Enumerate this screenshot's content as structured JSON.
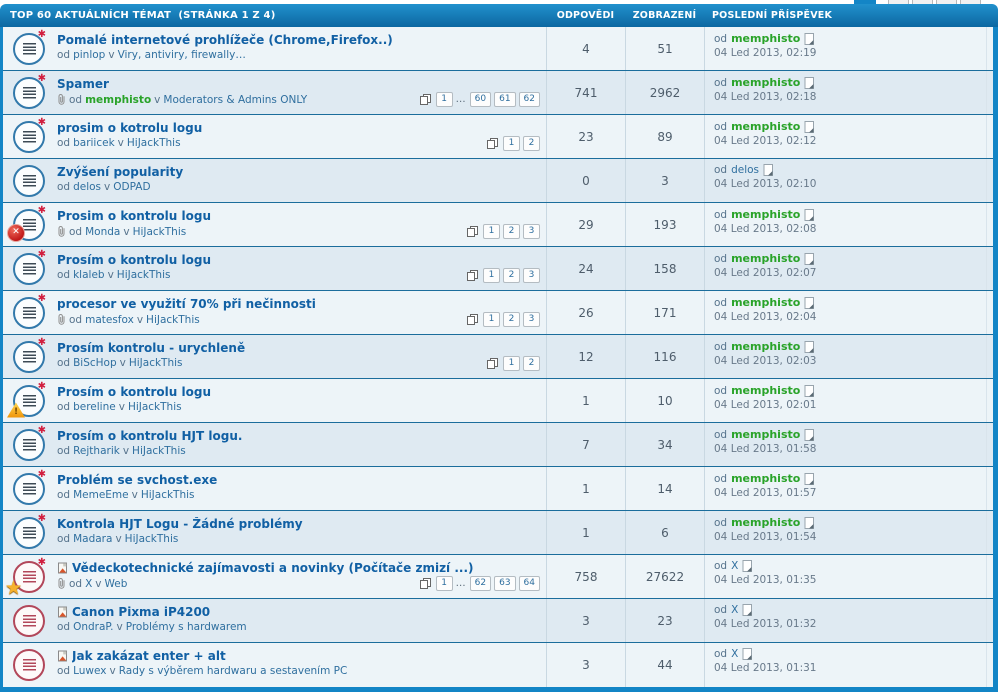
{
  "header": {
    "title": "TOP 60 AKTUÁLNÍCH TÉMAT",
    "page_info": "(STRÁNKA 1 Z 4)",
    "col_replies": "ODPOVĚDI",
    "col_views": "ZOBRAZENÍ",
    "col_lastpost": "POSLEDNÍ PŘÍSPĚVEK"
  },
  "labels": {
    "by": "od",
    "in": "v",
    "ellipsis": "…"
  },
  "icons": {
    "unread_glyph": "✱",
    "lock_glyph": "✕",
    "warn_glyph": "!",
    "star_glyph": "★"
  },
  "colors": {
    "accent_blue": "#1385c6",
    "header_gradient_top": "#2191cd",
    "header_gradient_bottom": "#0c67a1",
    "row_light": "#edf4f8",
    "row_alt": "#dfeaf2",
    "row_separator": "#1b6d9c",
    "title_link": "#1160a4",
    "author_green": "#29a329",
    "unread_red": "#d11f3f",
    "sticky_star_orange": "#f6b12e"
  },
  "topics": [
    {
      "title": "Pomalé internetové prohlížeče (Chrome,Firefox..)",
      "icon": "blue",
      "unread": true,
      "badge": "",
      "title_flag": false,
      "attachment": false,
      "author": "pinlop",
      "author_style": "normal",
      "forum": "Viry, antiviry, firewally…",
      "pages": [],
      "replies": "4",
      "views": "51",
      "last_author": "memphisto",
      "last_author_style": "green",
      "last_date": "04 Led 2013, 02:19"
    },
    {
      "title": "Spamer",
      "icon": "blue",
      "unread": true,
      "badge": "",
      "title_flag": false,
      "attachment": true,
      "author": "memphisto",
      "author_style": "green",
      "forum": "Moderators & Admins ONLY",
      "pages": [
        "1",
        "…",
        "60",
        "61",
        "62"
      ],
      "replies": "741",
      "views": "2962",
      "last_author": "memphisto",
      "last_author_style": "green",
      "last_date": "04 Led 2013, 02:18"
    },
    {
      "title": "prosim o kotrolu logu",
      "icon": "blue",
      "unread": true,
      "badge": "",
      "title_flag": false,
      "attachment": false,
      "author": "bariicek",
      "author_style": "normal",
      "forum": "HiJackThis",
      "pages": [
        "1",
        "2"
      ],
      "replies": "23",
      "views": "89",
      "last_author": "memphisto",
      "last_author_style": "green",
      "last_date": "04 Led 2013, 02:12"
    },
    {
      "title": "Zvýšení popularity",
      "icon": "blue",
      "unread": false,
      "badge": "",
      "title_flag": false,
      "attachment": false,
      "author": "delos",
      "author_style": "normal",
      "forum": "ODPAD",
      "pages": [],
      "replies": "0",
      "views": "3",
      "last_author": "delos",
      "last_author_style": "normal",
      "last_date": "04 Led 2013, 02:10"
    },
    {
      "title": "Prosim o kontrolu logu",
      "icon": "blue",
      "unread": true,
      "badge": "lock",
      "title_flag": false,
      "attachment": true,
      "author": "Monda",
      "author_style": "normal",
      "forum": "HiJackThis",
      "pages": [
        "1",
        "2",
        "3"
      ],
      "replies": "29",
      "views": "193",
      "last_author": "memphisto",
      "last_author_style": "green",
      "last_date": "04 Led 2013, 02:08"
    },
    {
      "title": "Prosím o kontrolu logu",
      "icon": "blue",
      "unread": true,
      "badge": "",
      "title_flag": false,
      "attachment": false,
      "author": "klaleb",
      "author_style": "normal",
      "forum": "HiJackThis",
      "pages": [
        "1",
        "2",
        "3"
      ],
      "replies": "24",
      "views": "158",
      "last_author": "memphisto",
      "last_author_style": "green",
      "last_date": "04 Led 2013, 02:07"
    },
    {
      "title": "procesor ve využití 70% při nečinnosti",
      "icon": "blue",
      "unread": true,
      "badge": "",
      "title_flag": false,
      "attachment": true,
      "author": "matesfox",
      "author_style": "normal",
      "forum": "HiJackThis",
      "pages": [
        "1",
        "2",
        "3"
      ],
      "replies": "26",
      "views": "171",
      "last_author": "memphisto",
      "last_author_style": "green",
      "last_date": "04 Led 2013, 02:04"
    },
    {
      "title": "Prosím kontrolu - urychleně",
      "icon": "blue",
      "unread": true,
      "badge": "",
      "title_flag": false,
      "attachment": false,
      "author": "BiScHop",
      "author_style": "normal",
      "forum": "HiJackThis",
      "pages": [
        "1",
        "2"
      ],
      "replies": "12",
      "views": "116",
      "last_author": "memphisto",
      "last_author_style": "green",
      "last_date": "04 Led 2013, 02:03"
    },
    {
      "title": "Prosím o kontrolu logu",
      "icon": "blue",
      "unread": true,
      "badge": "warn",
      "title_flag": false,
      "attachment": false,
      "author": "bereline",
      "author_style": "normal",
      "forum": "HiJackThis",
      "pages": [],
      "replies": "1",
      "views": "10",
      "last_author": "memphisto",
      "last_author_style": "green",
      "last_date": "04 Led 2013, 02:01"
    },
    {
      "title": "Prosím o kontrolu HJT logu.",
      "icon": "blue",
      "unread": true,
      "badge": "",
      "title_flag": false,
      "attachment": false,
      "author": "Rejtharik",
      "author_style": "normal",
      "forum": "HiJackThis",
      "pages": [],
      "replies": "7",
      "views": "34",
      "last_author": "memphisto",
      "last_author_style": "green",
      "last_date": "04 Led 2013, 01:58"
    },
    {
      "title": "Problém se svchost.exe",
      "icon": "blue",
      "unread": true,
      "badge": "",
      "title_flag": false,
      "attachment": false,
      "author": "MemeEme",
      "author_style": "normal",
      "forum": "HiJackThis",
      "pages": [],
      "replies": "1",
      "views": "14",
      "last_author": "memphisto",
      "last_author_style": "green",
      "last_date": "04 Led 2013, 01:57"
    },
    {
      "title": "Kontrola HJT Logu - Žádné problémy",
      "icon": "blue",
      "unread": true,
      "badge": "",
      "title_flag": false,
      "attachment": false,
      "author": "Madara",
      "author_style": "normal",
      "forum": "HiJackThis",
      "pages": [],
      "replies": "1",
      "views": "6",
      "last_author": "memphisto",
      "last_author_style": "green",
      "last_date": "04 Led 2013, 01:54"
    },
    {
      "title": "Vědeckotechnické zajímavosti a novinky (Počítače zmizí ...)",
      "icon": "red",
      "unread": true,
      "badge": "star",
      "title_flag": true,
      "attachment": true,
      "author": "X",
      "author_style": "normal",
      "forum": "Web",
      "pages": [
        "1",
        "…",
        "62",
        "63",
        "64"
      ],
      "replies": "758",
      "views": "27622",
      "last_author": "X",
      "last_author_style": "normal",
      "last_date": "04 Led 2013, 01:35"
    },
    {
      "title": "Canon Pixma iP4200",
      "icon": "red",
      "unread": false,
      "badge": "",
      "title_flag": true,
      "attachment": false,
      "author": "OndraP.",
      "author_style": "normal",
      "forum": "Problémy s hardwarem",
      "pages": [],
      "replies": "3",
      "views": "23",
      "last_author": "X",
      "last_author_style": "normal",
      "last_date": "04 Led 2013, 01:32"
    },
    {
      "title": "Jak zakázat enter + alt",
      "icon": "red",
      "unread": false,
      "badge": "",
      "title_flag": true,
      "attachment": false,
      "author": "Luwex",
      "author_style": "normal",
      "forum": "Rady s výběrem hardwaru a sestavením PC",
      "pages": [],
      "replies": "3",
      "views": "44",
      "last_author": "X",
      "last_author_style": "normal",
      "last_date": "04 Led 2013, 01:31"
    }
  ]
}
